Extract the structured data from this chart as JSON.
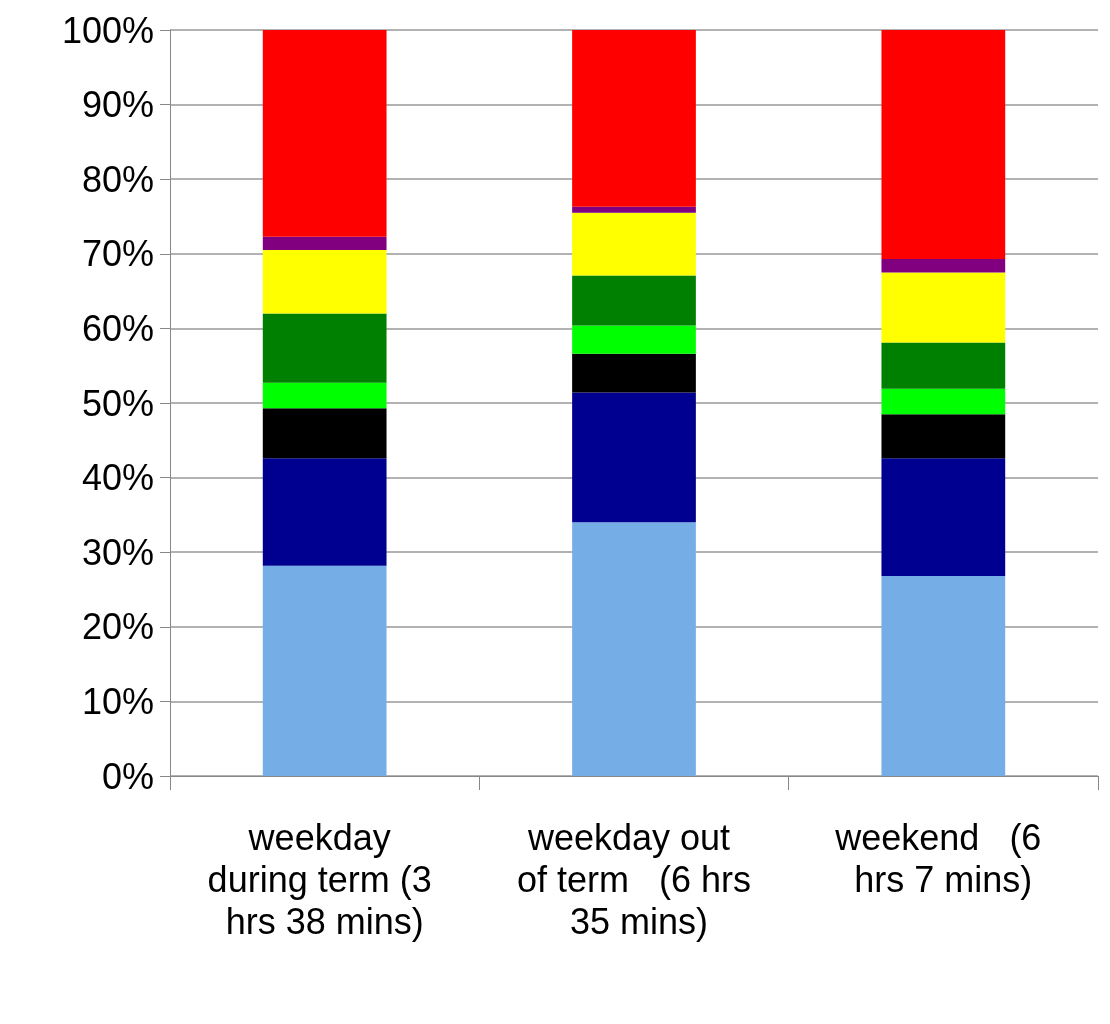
{
  "chart_data": {
    "type": "bar",
    "stacked": true,
    "categories": [
      "weekday during term (3 hrs 38 mins)",
      "weekday out of term   (6 hrs 35 mins)",
      "weekend   (6 hrs 7 mins)"
    ],
    "series": [
      {
        "color": "#75aee6",
        "values": [
          28.2,
          34.0,
          26.8
        ]
      },
      {
        "color": "#000090",
        "values": [
          14.4,
          17.4,
          15.8
        ]
      },
      {
        "color": "#000000",
        "values": [
          6.7,
          5.2,
          5.9
        ]
      },
      {
        "color": "#00ff00",
        "values": [
          3.4,
          3.8,
          3.4
        ]
      },
      {
        "color": "#008000",
        "values": [
          9.3,
          6.7,
          6.2
        ]
      },
      {
        "color": "#ffff00",
        "values": [
          8.5,
          8.4,
          9.4
        ]
      },
      {
        "color": "#800080",
        "values": [
          1.8,
          0.8,
          1.8
        ]
      },
      {
        "color": "#ff0000",
        "values": [
          27.7,
          23.7,
          30.7
        ]
      }
    ],
    "ylim": [
      0,
      100
    ],
    "yticks": [
      {
        "value": 0,
        "label": "0%"
      },
      {
        "value": 10,
        "label": "10%"
      },
      {
        "value": 20,
        "label": "20%"
      },
      {
        "value": 30,
        "label": "30%"
      },
      {
        "value": 40,
        "label": "40%"
      },
      {
        "value": 50,
        "label": "50%"
      },
      {
        "value": 60,
        "label": "60%"
      },
      {
        "value": 70,
        "label": "70%"
      },
      {
        "value": 80,
        "label": "80%"
      },
      {
        "value": 90,
        "label": "90%"
      },
      {
        "value": 100,
        "label": "100%"
      }
    ],
    "grid": "y"
  }
}
